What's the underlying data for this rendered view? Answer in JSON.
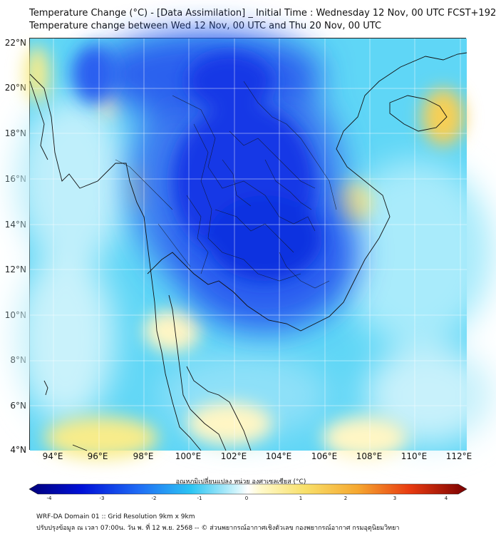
{
  "title_line1": "Temperature Change (°C) - [Data Assimilation] _ Initial Time : Wednesday 12 Nov, 00 UTC FCST+192",
  "title_line2": "Temperature change between Wed 12 Nov, 00 UTC and Thu 20 Nov, 00 UTC",
  "y_ticks": [
    "22°N",
    "20°N",
    "18°N",
    "16°N",
    "14°N",
    "12°N",
    "10°N",
    "8°N",
    "6°N",
    "4°N"
  ],
  "x_ticks": [
    "94°E",
    "96°E",
    "98°E",
    "100°E",
    "102°E",
    "104°E",
    "106°E",
    "108°E",
    "110°E",
    "112°E"
  ],
  "colorbar": {
    "label": "อุณหภูมิเปลี่ยนแปลง หน่วย องศาเซลเซียส (°C)",
    "ticks": [
      "-4",
      "-3",
      "-2",
      "-1",
      "0",
      "1",
      "2",
      "3",
      "4"
    ],
    "range": [
      -4,
      4
    ]
  },
  "footer_line1": "WRF-DA Domain 01 :: Grid Resolution 9km x 9km",
  "footer_line2": "ปรับปรุงข้อมูล ณ เวลา 07:00น. วัน พ. ที่ 12 พ.ย. 2568 -- © ส่วนพยากรณ์อากาศเชิงตัวเลข กองพยากรณ์อากาศ กรมอุตุนิยมวิทยา",
  "colors": {
    "deep_blue": "#1030e0",
    "blue": "#3a78f0",
    "cyan": "#29c6f2",
    "light_cyan": "#9ee7fb",
    "pale": "#dff6fb",
    "yellow": "#f8ec8a",
    "orange": "#f7cf55"
  }
}
